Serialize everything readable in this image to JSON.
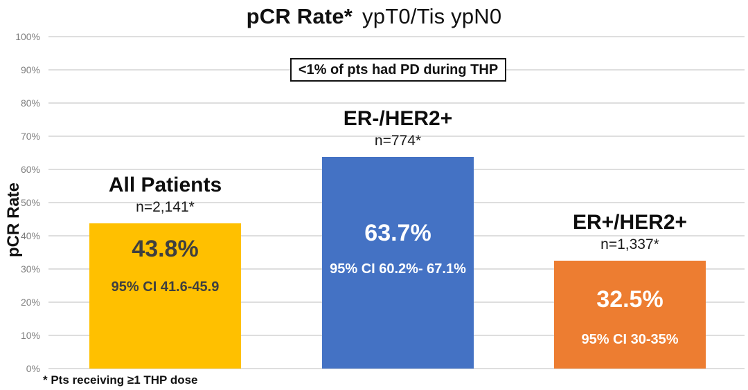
{
  "title": {
    "bold": "pCR Rate*",
    "regular": "ypT0/Tis ypN0"
  },
  "annotation": "<1% of pts had PD during THP",
  "y_axis": {
    "label": "pCR Rate",
    "ticks": [
      "100%",
      "90%",
      "80%",
      "70%",
      "60%",
      "50%",
      "40%",
      "30%",
      "20%",
      "10%",
      "0%"
    ]
  },
  "footnote": "* Pts receiving ≥1 THP dose",
  "chart_data": {
    "type": "bar",
    "title": "pCR Rate* ypT0/Tis ypN0",
    "xlabel": "",
    "ylabel": "pCR Rate",
    "ylim": [
      0,
      100
    ],
    "grid": true,
    "legend": "none",
    "categories": [
      "All Patients",
      "ER-/HER2+",
      "ER+/HER2+"
    ],
    "values": [
      43.8,
      63.7,
      32.5
    ],
    "bars": [
      {
        "label": "All Patients",
        "n": "n=2,141*",
        "value": 43.8,
        "value_label": "43.8%",
        "ci": "95% CI 41.6-45.9",
        "color": "#FFC000",
        "text_color": "#3F3F3F"
      },
      {
        "label": "ER-/HER2+",
        "n": "n=774*",
        "value": 63.7,
        "value_label": "63.7%",
        "ci": "95% CI 60.2%- 67.1%",
        "color": "#4472C4",
        "text_color": "#FFFFFF"
      },
      {
        "label": "ER+/HER2+",
        "n": "n=1,337*",
        "value": 32.5,
        "value_label": "32.5%",
        "ci": "95% CI 30-35%",
        "color": "#ED7D31",
        "text_color": "#FFFFFF"
      }
    ],
    "annotation": "<1% of pts had PD during THP",
    "footnote": "* Pts receiving ≥1 THP dose",
    "colors": {
      "gridline": "#DEDEDE",
      "tick_label": "#7F7F7F",
      "title_text": "#111111",
      "bar_gold": "#FFC000",
      "bar_blue": "#4472C4",
      "bar_orange": "#ED7D31"
    }
  }
}
